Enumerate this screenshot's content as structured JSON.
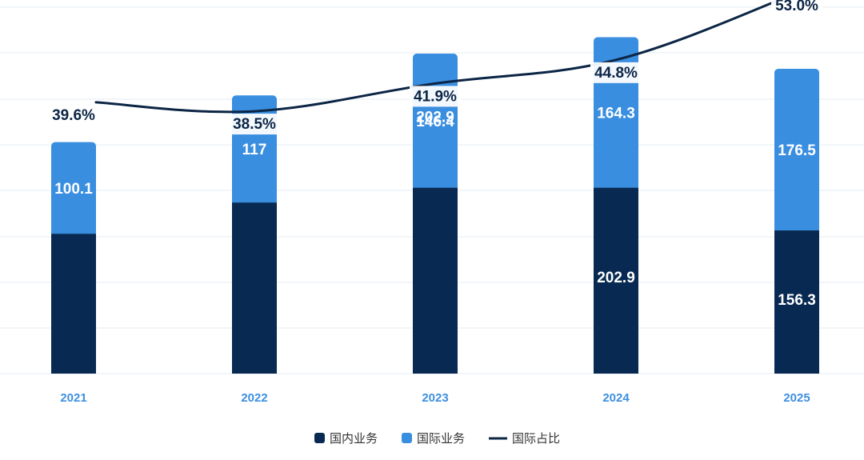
{
  "colors": {
    "domestic": "#082a52",
    "international": "#3a8ee0",
    "line": "#0b2545",
    "grid": "#e6edf5",
    "tick": "#3d8fe0"
  },
  "legend": {
    "domestic": "国内业务",
    "international": "国际业务",
    "line": "国际占比"
  },
  "chart_data": {
    "type": "bar",
    "stacked": true,
    "categories": [
      "2021",
      "2022",
      "2023",
      "2024",
      "2025"
    ],
    "series": [
      {
        "name": "国内业务",
        "values": [
          152.6,
          186.7,
          202.9,
          202.9,
          156.3
        ]
      },
      {
        "name": "国际业务",
        "values": [
          100.1,
          117.0,
          146.4,
          164.3,
          176.5
        ]
      }
    ],
    "line_series": {
      "name": "国际占比",
      "values": [
        39.6,
        38.5,
        41.9,
        44.8,
        53.0
      ],
      "labels": [
        "39.6%",
        "38.5%",
        "41.9%",
        "44.8%",
        "53.0%"
      ]
    },
    "ylim": [
      0,
      400
    ],
    "grid": true,
    "legend_position": "bottom-center"
  }
}
